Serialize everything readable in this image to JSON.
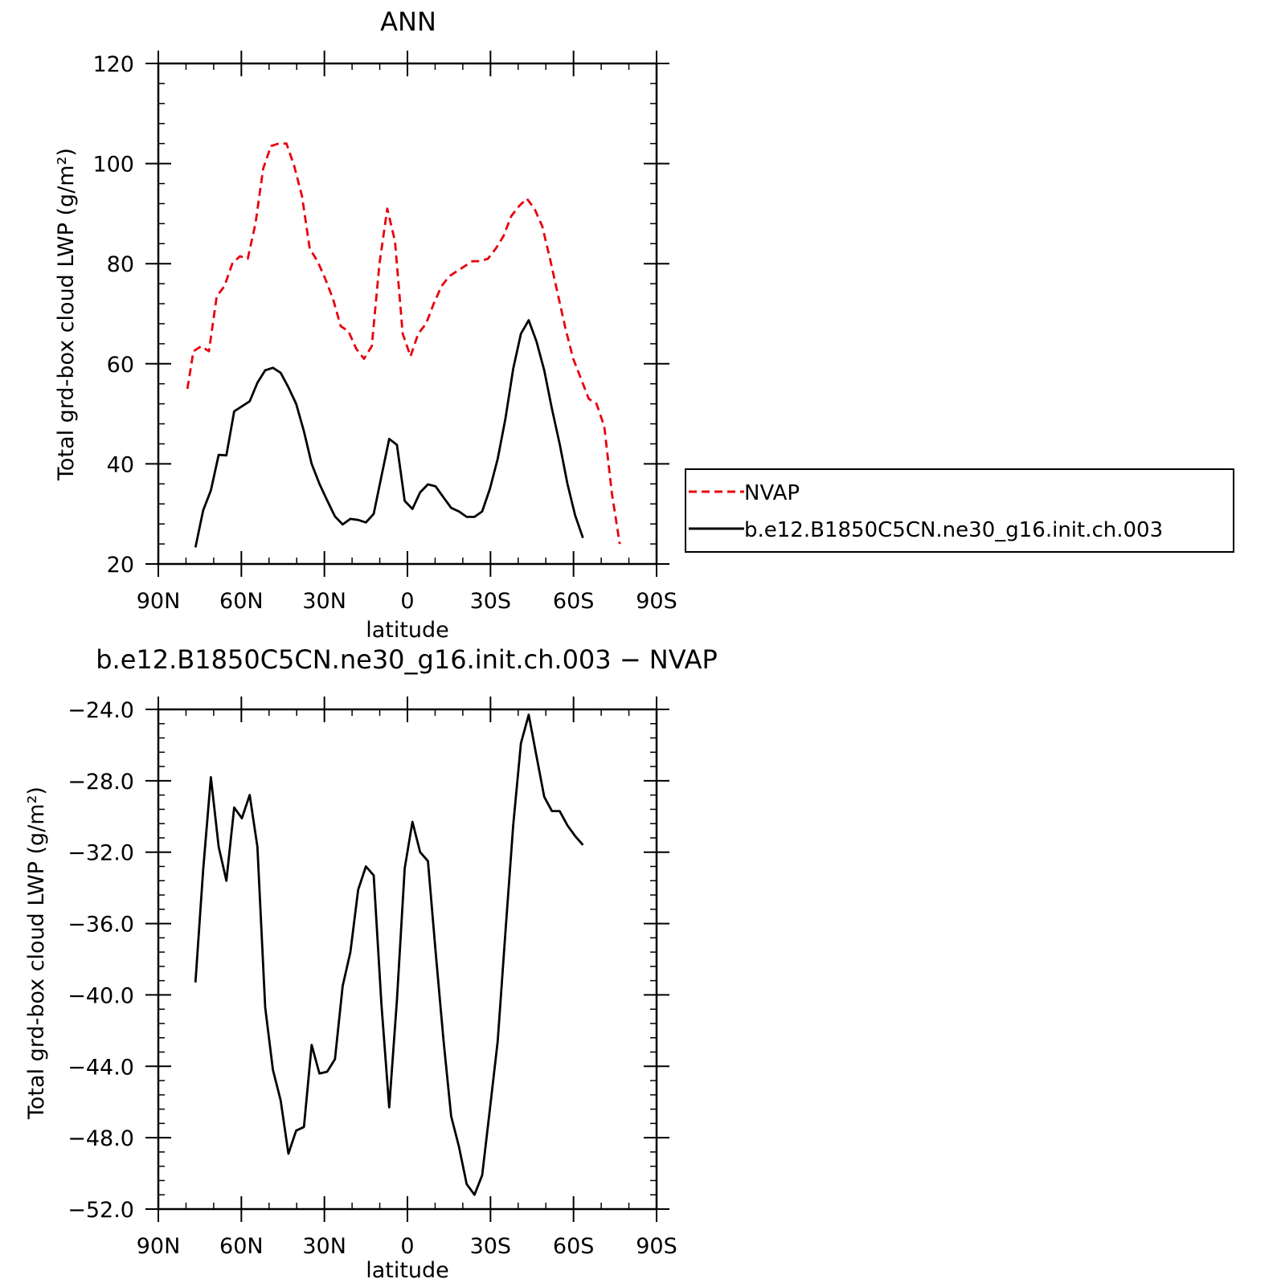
{
  "chart_data": [
    {
      "type": "line",
      "title": "ANN",
      "xlabel": "latitude",
      "ylabel": "Total grd-box cloud LWP (g/m²)",
      "ylim": [
        20,
        120
      ],
      "yticks": [
        "120",
        "100",
        "80",
        "60",
        "40",
        "20"
      ],
      "ytick_values": [
        120,
        100,
        80,
        60,
        40,
        20
      ],
      "xlim": [
        -90,
        90
      ],
      "xticks": [
        "90N",
        "60N",
        "30N",
        "0",
        "30S",
        "60S",
        "90S"
      ],
      "xtick_values": [
        -90,
        -60,
        -30,
        0,
        30,
        60,
        90
      ],
      "legend_position": "right",
      "series": [
        {
          "name": "NVAP",
          "color": "#e8000b",
          "dash": "dashed",
          "x": [
            -79.5,
            -77.3,
            -74.5,
            -71.7,
            -68.9,
            -66.1,
            -63.3,
            -60.5,
            -57.7,
            -54.9,
            -52.1,
            -49.3,
            -46.5,
            -43.7,
            -40.9,
            -38.1,
            -35.3,
            -32.5,
            -29.7,
            -26.9,
            -24.1,
            -21.3,
            -18.5,
            -15.7,
            -12.9,
            -10.1,
            -7.3,
            -4.5,
            -1.7,
            1.1,
            3.9,
            6.7,
            9.5,
            12.3,
            15.1,
            17.9,
            20.7,
            23.5,
            26.3,
            29.1,
            31.9,
            34.7,
            37.5,
            40.3,
            43.1,
            45.9,
            48.7,
            51.5,
            54.3,
            57.1,
            59.9,
            62.7,
            65.5,
            68.3,
            71.1,
            73.9,
            76.7
          ],
          "y": [
            55,
            62.5,
            63.5,
            62.5,
            73.5,
            75.5,
            80,
            81.5,
            81,
            88,
            99,
            103.5,
            104,
            104,
            99.5,
            93.5,
            83,
            80.5,
            77,
            73,
            67.5,
            66.5,
            63,
            61,
            63.5,
            80,
            91,
            84.5,
            66,
            61.5,
            66,
            68,
            72,
            75.5,
            77.5,
            78.5,
            79.5,
            80.5,
            80.5,
            81,
            83,
            85.5,
            89.5,
            91.5,
            93,
            91,
            87.5,
            81,
            74,
            67,
            61,
            57,
            53,
            52,
            47.5,
            34,
            24
          ]
        },
        {
          "name": "b.e12.B1850C5CN.ne30_g16.init.ch.003",
          "color": "#000000",
          "dash": "solid",
          "x": [
            -76.6,
            -73.8,
            -71.0,
            -68.2,
            -65.4,
            -62.6,
            -59.8,
            -57.0,
            -54.2,
            -51.4,
            -48.6,
            -45.8,
            -43.0,
            -40.2,
            -37.4,
            -34.6,
            -31.8,
            -29.0,
            -26.2,
            -23.4,
            -20.6,
            -17.8,
            -15.0,
            -12.2,
            -9.4,
            -6.6,
            -3.8,
            -1.0,
            1.8,
            4.6,
            7.4,
            10.2,
            13.0,
            15.8,
            18.6,
            21.4,
            24.2,
            27.0,
            29.8,
            32.6,
            35.4,
            38.2,
            41.0,
            43.8,
            46.6,
            49.4,
            52.2,
            55.0,
            57.8,
            60.6,
            63.4
          ],
          "y": [
            23.3,
            30.7,
            34.7,
            41.8,
            41.7,
            50.5,
            51.5,
            52.5,
            56.2,
            58.7,
            59.2,
            58.2,
            55.3,
            52.0,
            46.5,
            40.0,
            36.0,
            32.7,
            29.5,
            27.9,
            29.0,
            28.8,
            28.3,
            30.0,
            37.5,
            45.0,
            43.8,
            32.6,
            31.0,
            34.3,
            35.9,
            35.5,
            33.3,
            31.2,
            30.5,
            29.4,
            29.4,
            30.5,
            35.0,
            41.0,
            49.0,
            59.0,
            66.0,
            68.7,
            64.5,
            58.7,
            51.0,
            44.0,
            36.0,
            29.7,
            25.2
          ]
        }
      ]
    },
    {
      "type": "line",
      "title": "b.e12.B1850C5CN.ne30_g16.init.ch.003 − NVAP",
      "xlabel": "latitude",
      "ylabel": "Total grd-box cloud LWP (g/m²)",
      "ylim": [
        -52,
        -24
      ],
      "yticks": [
        "−24.0",
        "−28.0",
        "−32.0",
        "−36.0",
        "−40.0",
        "−44.0",
        "−48.0",
        "−52.0"
      ],
      "ytick_values": [
        -24,
        -28,
        -32,
        -36,
        -40,
        -44,
        -48,
        -52
      ],
      "xlim": [
        -90,
        90
      ],
      "xticks": [
        "90N",
        "60N",
        "30N",
        "0",
        "30S",
        "60S",
        "90S"
      ],
      "xtick_values": [
        -90,
        -60,
        -30,
        0,
        30,
        60,
        90
      ],
      "series": [
        {
          "color": "#000000",
          "dash": "solid",
          "x": [
            -76.6,
            -73.8,
            -71.0,
            -68.2,
            -65.4,
            -62.6,
            -59.8,
            -57.0,
            -54.2,
            -51.4,
            -48.6,
            -45.8,
            -43.0,
            -40.2,
            -37.4,
            -34.6,
            -31.8,
            -29.0,
            -26.2,
            -23.4,
            -20.6,
            -17.8,
            -15.0,
            -12.2,
            -9.4,
            -6.6,
            -3.8,
            -1.0,
            1.8,
            4.6,
            7.4,
            10.2,
            13.0,
            15.8,
            18.6,
            21.4,
            24.2,
            27.0,
            29.8,
            32.6,
            35.4,
            38.2,
            41.0,
            43.8,
            46.6,
            49.4,
            52.2,
            55.0,
            57.8,
            60.6,
            63.4
          ],
          "y": [
            -39.3,
            -33.0,
            -27.8,
            -31.7,
            -33.6,
            -29.5,
            -30.1,
            -28.8,
            -31.7,
            -40.7,
            -44.2,
            -45.9,
            -48.9,
            -47.6,
            -47.4,
            -42.8,
            -44.4,
            -44.3,
            -43.6,
            -39.5,
            -37.6,
            -34.1,
            -32.8,
            -33.3,
            -40.5,
            -46.3,
            -40.3,
            -32.9,
            -30.3,
            -32.0,
            -32.5,
            -37.6,
            -42.5,
            -46.8,
            -48.5,
            -50.6,
            -51.2,
            -50.1,
            -46.4,
            -42.6,
            -36.5,
            -30.5,
            -25.9,
            -24.3,
            -26.6,
            -28.9,
            -29.7,
            -29.7,
            -30.5,
            -31.1,
            -31.6
          ]
        }
      ]
    }
  ]
}
